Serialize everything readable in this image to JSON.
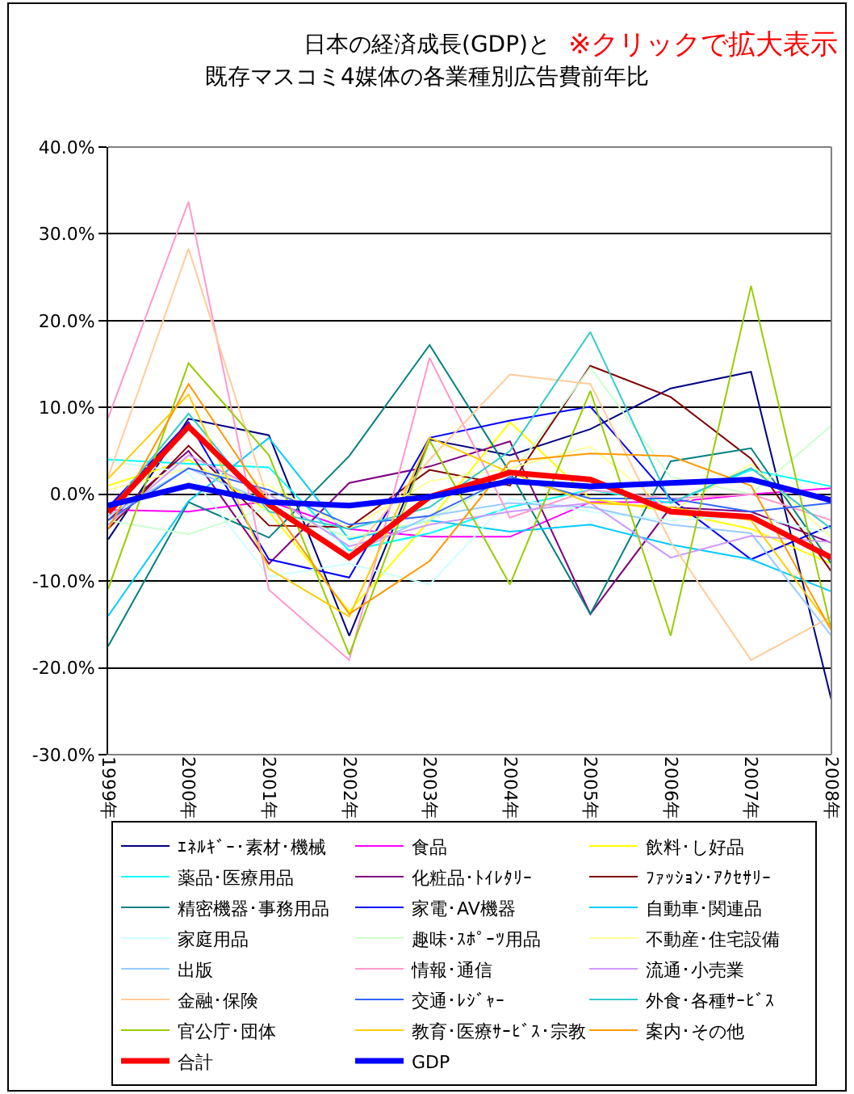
{
  "chart_data": {
    "type": "line",
    "title": "日本の経済成長(GDP)と",
    "subtitle": "既存マスコミ4媒体の各業種別広告費前年比",
    "annotations": [
      "※クリックで拡大表示"
    ],
    "categories": [
      "1999年",
      "2000年",
      "2001年",
      "2002年",
      "2003年",
      "2004年",
      "2005年",
      "2006年",
      "2007年",
      "2008年"
    ],
    "ylim": [
      -30,
      40
    ],
    "yticks": [
      {
        "value": -30,
        "label": "-30.0%"
      },
      {
        "value": -20,
        "label": "-20.0%"
      },
      {
        "value": -10,
        "label": "-10.0%"
      },
      {
        "value": 0,
        "label": "0.0%"
      },
      {
        "value": 10,
        "label": "10.0%"
      },
      {
        "value": 20,
        "label": "20.0%"
      },
      {
        "value": 30,
        "label": "30.0%"
      },
      {
        "value": 40,
        "label": "40.0%"
      }
    ],
    "grid": "y",
    "legend": "bottom",
    "marker": "none",
    "line_style": "solid",
    "series": [
      {
        "name": "ｴﾈﾙｷﾞｰ･素材･機械",
        "color": "#000080",
        "values": [
          -5.2,
          8.7,
          6.8,
          -16.3,
          6.3,
          4.5,
          7.5,
          12.2,
          14.1,
          -23.7
        ]
      },
      {
        "name": "食品",
        "color": "#ff00ff",
        "values": [
          -1.8,
          -2.0,
          -0.8,
          -4.0,
          -4.9,
          -4.9,
          -0.9,
          -0.9,
          0.0,
          0.7
        ]
      },
      {
        "name": "飲料･し好品",
        "color": "#ffff00",
        "values": [
          1.0,
          4.0,
          -2.0,
          -13.5,
          -3.0,
          8.3,
          -0.5,
          -2.0,
          -4.0,
          -8.0
        ]
      },
      {
        "name": "薬品･医療用品",
        "color": "#00ffff",
        "values": [
          4.0,
          3.5,
          3.1,
          -6.5,
          -4.5,
          -1.5,
          0.5,
          -1.0,
          2.8,
          0.9
        ]
      },
      {
        "name": "化粧品･ﾄｲﾚﾀﾘｰ",
        "color": "#800080",
        "values": [
          -3.0,
          5.0,
          -8.0,
          1.3,
          3.2,
          6.1,
          -13.8,
          -1.5,
          -2.0,
          -5.6
        ]
      },
      {
        "name": "ﾌｧｯｼｮﾝ･ｱｸｾｻﾘｰ",
        "color": "#800000",
        "values": [
          -4.0,
          5.6,
          -3.6,
          -3.8,
          2.8,
          1.0,
          14.8,
          11.2,
          4.1,
          -8.9
        ]
      },
      {
        "name": "精密機器･事務用品",
        "color": "#008080",
        "values": [
          -17.5,
          -0.9,
          -5.0,
          4.4,
          17.2,
          2.5,
          -13.8,
          3.8,
          5.3,
          -8.0
        ]
      },
      {
        "name": "家電･AV機器",
        "color": "#0000ff",
        "values": [
          -1.5,
          8.3,
          -7.5,
          -9.6,
          6.5,
          8.5,
          10.1,
          -0.5,
          -7.5,
          -3.6
        ]
      },
      {
        "name": "自動車･関連品",
        "color": "#00ccff",
        "values": [
          -14.0,
          -0.8,
          6.5,
          -5.2,
          -3.0,
          -4.3,
          -3.5,
          -5.8,
          -7.5,
          -11.2
        ]
      },
      {
        "name": "家庭用品",
        "color": "#ccffff",
        "values": [
          3.8,
          2.5,
          -9.5,
          -8.0,
          -10.4,
          -0.5,
          -2.0,
          -3.0,
          -2.5,
          -4.5
        ]
      },
      {
        "name": "趣味･ｽﾎﾟｰﾂ用品",
        "color": "#ccffcc",
        "values": [
          -3.0,
          -4.6,
          -1.5,
          -5.0,
          -3.0,
          2.0,
          14.6,
          2.0,
          0.0,
          7.9
        ]
      },
      {
        "name": "不動産･住宅設備",
        "color": "#ffff99",
        "values": [
          0.5,
          3.0,
          1.0,
          -4.0,
          1.5,
          3.0,
          5.5,
          -2.0,
          3.5,
          -5.0
        ]
      },
      {
        "name": "出版",
        "color": "#99ccff",
        "values": [
          -2.5,
          3.0,
          -1.0,
          -7.0,
          -2.5,
          -1.0,
          -1.5,
          -3.5,
          -4.5,
          -16.3
        ]
      },
      {
        "name": "情報･通信",
        "color": "#ff99cc",
        "values": [
          8.8,
          33.7,
          -11.0,
          -19.1,
          15.7,
          -2.7,
          0.5,
          -0.5,
          0.0,
          -3.0
        ]
      },
      {
        "name": "流通･小売業",
        "color": "#cc99ff",
        "values": [
          -3.5,
          4.5,
          0.0,
          -6.0,
          -3.5,
          -2.0,
          -1.0,
          -7.3,
          -4.8,
          -5.5
        ]
      },
      {
        "name": "金融･保険",
        "color": "#ffcc99",
        "values": [
          2.0,
          28.3,
          -1.0,
          -7.0,
          4.0,
          13.8,
          12.7,
          -5.5,
          -19.1,
          -14.1
        ]
      },
      {
        "name": "交通･ﾚｼﾞｬｰ",
        "color": "#3366ff",
        "values": [
          -3.0,
          3.0,
          0.5,
          -3.5,
          -2.5,
          2.0,
          -0.5,
          -0.5,
          -2.0,
          -1.0
        ]
      },
      {
        "name": "外食･各種ｻｰﾋﾞｽ",
        "color": "#33cccc",
        "values": [
          -2.0,
          9.3,
          -2.0,
          -4.0,
          -1.5,
          5.0,
          18.7,
          -1.0,
          3.0,
          -4.0
        ]
      },
      {
        "name": "官公庁･団体",
        "color": "#99cc00",
        "values": [
          -10.9,
          15.1,
          4.5,
          -18.5,
          6.2,
          -10.4,
          11.9,
          -16.3,
          24.0,
          -15.7
        ]
      },
      {
        "name": "教育･医療ｻｰﾋﾞｽ･宗教",
        "color": "#ffcc00",
        "values": [
          1.8,
          11.5,
          -8.6,
          -14.1,
          6.5,
          2.5,
          -1.0,
          -1.5,
          -3.0,
          -15.4
        ]
      },
      {
        "name": "案内･その他",
        "color": "#ff9900",
        "values": [
          -4.0,
          12.7,
          -1.0,
          -13.8,
          -7.7,
          3.8,
          4.7,
          4.4,
          1.0,
          -15.7
        ]
      },
      {
        "name": "合計",
        "color": "#ff0000",
        "values": [
          -2.1,
          7.8,
          -1.2,
          -7.3,
          -0.3,
          2.5,
          1.7,
          -2.0,
          -2.6,
          -7.3
        ]
      },
      {
        "name": "GDP",
        "color": "#0000ff",
        "values": [
          -1.3,
          1.0,
          -0.9,
          -1.3,
          -0.3,
          1.5,
          0.9,
          1.3,
          1.7,
          -0.7
        ]
      }
    ]
  }
}
